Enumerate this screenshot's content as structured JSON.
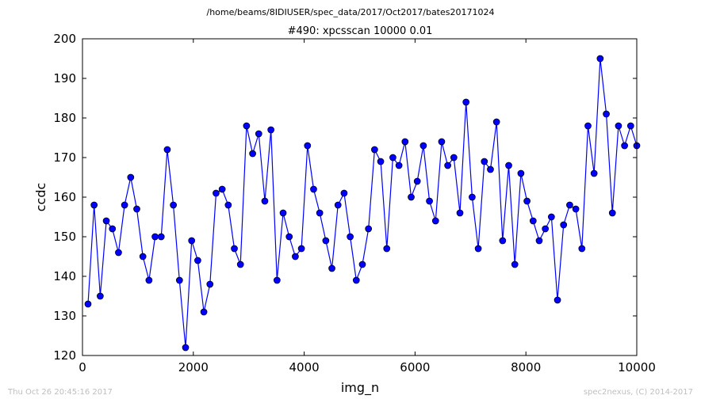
{
  "header": {
    "path": "/home/beams/8IDIUSER/spec_data/2017/Oct2017/bates20171024"
  },
  "footer": {
    "timestamp": "Thu Oct 26 20:45:16 2017",
    "credit": "spec2nexus, (C) 2014-2017"
  },
  "chart_data": {
    "type": "line",
    "title": "#490: xpcsscan 10000 0.01",
    "xlabel": "img_n",
    "ylabel": "ccdc",
    "xlim": [
      0,
      10000
    ],
    "ylim": [
      120,
      200
    ],
    "xticks": [
      0,
      2000,
      4000,
      6000,
      8000,
      10000
    ],
    "yticks": [
      120,
      130,
      140,
      150,
      160,
      170,
      180,
      190,
      200
    ],
    "grid": false,
    "legend": "none",
    "color": "#0000ff",
    "series": [
      {
        "x": [
          100,
          210,
          320,
          430,
          540,
          650,
          760,
          870,
          980,
          1090,
          1200,
          1310,
          1420,
          1530,
          1640,
          1750,
          1860,
          1970,
          2080,
          2190,
          2300,
          2410,
          2520,
          2630,
          2740,
          2850,
          2960,
          3070,
          3180,
          3290,
          3400,
          3510,
          3620,
          3730,
          3840,
          3950,
          4060,
          4170,
          4280,
          4390,
          4500,
          4610,
          4720,
          4830,
          4940,
          5050,
          5160,
          5270,
          5380,
          5490,
          5600,
          5710,
          5820,
          5930,
          6040,
          6150,
          6260,
          6370,
          6480,
          6590,
          6700,
          6810,
          6920,
          7030,
          7140,
          7250,
          7360,
          7470,
          7580,
          7690,
          7800,
          7910,
          8020,
          8130,
          8240,
          8350,
          8460,
          8570,
          8680,
          8790,
          8900,
          9010,
          9120,
          9230,
          9340,
          9450,
          9560,
          9670,
          9780,
          9890,
          10000
        ],
        "y": [
          133,
          158,
          135,
          154,
          152,
          146,
          158,
          165,
          157,
          145,
          139,
          150,
          150,
          172,
          158,
          139,
          122,
          149,
          144,
          131,
          138,
          161,
          162,
          158,
          147,
          143,
          178,
          171,
          176,
          159,
          177,
          139,
          156,
          150,
          145,
          147,
          173,
          162,
          156,
          149,
          142,
          158,
          161,
          150,
          139,
          143,
          152,
          172,
          169,
          147,
          170,
          168,
          174,
          160,
          164,
          173,
          159,
          154,
          174,
          168,
          170,
          156,
          184,
          160,
          147,
          169,
          167,
          179,
          149,
          168,
          143,
          166,
          159,
          154,
          149,
          152,
          155,
          134,
          153,
          158,
          157,
          147,
          178,
          166,
          195,
          181,
          156,
          178,
          173,
          178,
          173
        ]
      }
    ]
  }
}
